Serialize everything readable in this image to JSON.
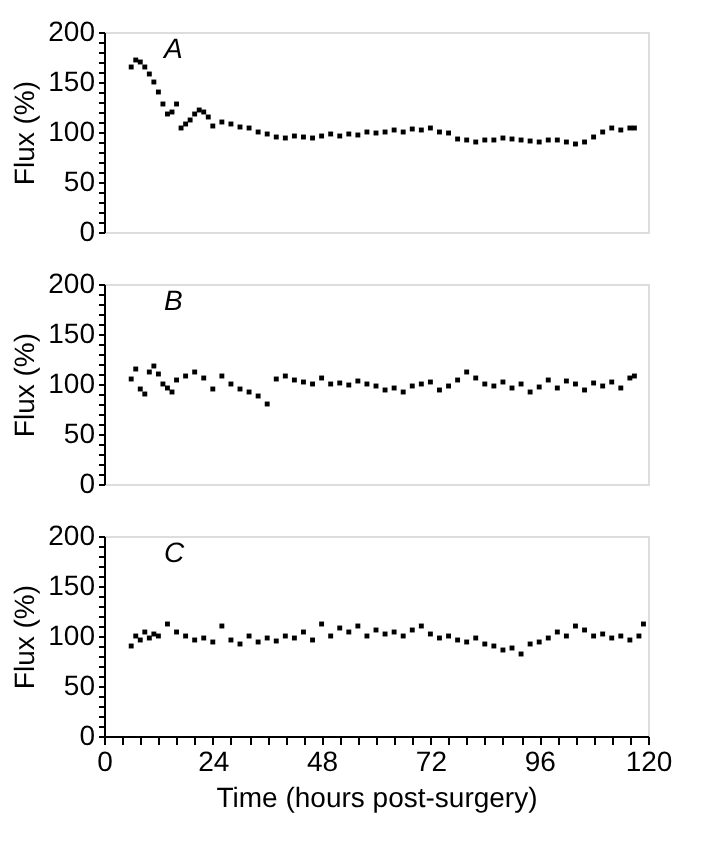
{
  "chart_data": [
    {
      "type": "scatter",
      "ylabel": "Flux (%)",
      "annotations": [
        "A"
      ],
      "marker": "square",
      "grid": false,
      "tick_labels": "y",
      "xlim": [
        0,
        120
      ],
      "ylim": [
        0,
        200
      ],
      "yticks": [
        0,
        {
          "value": 10,
          "label": null
        },
        {
          "value": 20,
          "label": null
        },
        {
          "value": 30,
          "label": null
        },
        {
          "value": 40,
          "label": null
        },
        50,
        {
          "value": 60,
          "label": null
        },
        {
          "value": 70,
          "label": null
        },
        {
          "value": 80,
          "label": null
        },
        {
          "value": 90,
          "label": null
        },
        100,
        {
          "value": 110,
          "label": null
        },
        {
          "value": 120,
          "label": null
        },
        {
          "value": 130,
          "label": null
        },
        {
          "value": 140,
          "label": null
        },
        150,
        {
          "value": 160,
          "label": null
        },
        {
          "value": 170,
          "label": null
        },
        {
          "value": 180,
          "label": null
        },
        {
          "value": 190,
          "label": null
        },
        200
      ],
      "x": [
        6,
        7,
        8,
        9,
        10,
        11,
        12,
        13,
        14,
        15,
        16,
        17,
        18,
        19,
        20,
        21,
        22,
        23,
        24,
        26,
        28,
        30,
        32,
        34,
        36,
        38,
        40,
        42,
        44,
        46,
        48,
        50,
        52,
        54,
        56,
        58,
        60,
        62,
        64,
        66,
        68,
        70,
        72,
        74,
        76,
        78,
        80,
        82,
        84,
        86,
        88,
        90,
        92,
        94,
        96,
        98,
        100,
        102,
        104,
        106,
        108,
        110,
        112,
        114,
        116,
        117
      ],
      "series": [
        {
          "color": "#000000",
          "values": [
            165,
            172,
            170,
            165,
            158,
            150,
            140,
            128,
            118,
            120,
            128,
            104,
            108,
            112,
            118,
            122,
            120,
            115,
            106,
            110,
            108,
            105,
            104,
            100,
            98,
            95,
            94,
            96,
            95,
            94,
            96,
            98,
            96,
            98,
            97,
            100,
            99,
            100,
            102,
            100,
            103,
            102,
            104,
            100,
            99,
            93,
            92,
            90,
            92,
            92,
            94,
            93,
            92,
            91,
            90,
            92,
            92,
            90,
            88,
            90,
            95,
            100,
            104,
            102,
            104,
            104
          ]
        }
      ]
    },
    {
      "type": "scatter",
      "ylabel": "Flux (%)",
      "annotations": [
        "B"
      ],
      "marker": "square",
      "grid": false,
      "tick_labels": "y",
      "xlim": [
        0,
        120
      ],
      "ylim": [
        0,
        200
      ],
      "yticks": [
        0,
        {
          "value": 10,
          "label": null
        },
        {
          "value": 20,
          "label": null
        },
        {
          "value": 30,
          "label": null
        },
        {
          "value": 40,
          "label": null
        },
        50,
        {
          "value": 60,
          "label": null
        },
        {
          "value": 70,
          "label": null
        },
        {
          "value": 80,
          "label": null
        },
        {
          "value": 90,
          "label": null
        },
        100,
        {
          "value": 110,
          "label": null
        },
        {
          "value": 120,
          "label": null
        },
        {
          "value": 130,
          "label": null
        },
        {
          "value": 140,
          "label": null
        },
        150,
        {
          "value": 160,
          "label": null
        },
        {
          "value": 170,
          "label": null
        },
        {
          "value": 180,
          "label": null
        },
        {
          "value": 190,
          "label": null
        },
        200
      ],
      "x": [
        6,
        7,
        8,
        9,
        10,
        11,
        12,
        13,
        14,
        15,
        16,
        18,
        20,
        22,
        24,
        26,
        28,
        30,
        32,
        34,
        36,
        38,
        40,
        42,
        44,
        46,
        48,
        50,
        52,
        54,
        56,
        58,
        60,
        62,
        64,
        66,
        68,
        70,
        72,
        74,
        76,
        78,
        80,
        82,
        84,
        86,
        88,
        90,
        92,
        94,
        96,
        98,
        100,
        102,
        104,
        106,
        108,
        110,
        112,
        114,
        116,
        117
      ],
      "series": [
        {
          "color": "#000000",
          "values": [
            105,
            115,
            95,
            90,
            112,
            118,
            110,
            100,
            96,
            92,
            104,
            108,
            112,
            106,
            95,
            108,
            100,
            95,
            92,
            88,
            80,
            105,
            108,
            104,
            102,
            100,
            106,
            100,
            101,
            99,
            103,
            100,
            98,
            94,
            96,
            92,
            98,
            100,
            102,
            94,
            98,
            104,
            112,
            106,
            100,
            98,
            102,
            96,
            100,
            92,
            97,
            104,
            96,
            103,
            100,
            94,
            101,
            98,
            102,
            96,
            106,
            108
          ]
        }
      ]
    },
    {
      "type": "scatter",
      "xlabel": "Time (hours post-surgery)",
      "ylabel": "Flux (%)",
      "annotations": [
        "C"
      ],
      "marker": "square",
      "grid": false,
      "xlim": [
        0,
        120
      ],
      "ylim": [
        0,
        200
      ],
      "xticks": [
        0,
        {
          "value": 4,
          "label": null
        },
        {
          "value": 8,
          "label": null
        },
        {
          "value": 12,
          "label": null
        },
        {
          "value": 16,
          "label": null
        },
        {
          "value": 20,
          "label": null
        },
        24,
        {
          "value": 28,
          "label": null
        },
        {
          "value": 32,
          "label": null
        },
        {
          "value": 36,
          "label": null
        },
        {
          "value": 40,
          "label": null
        },
        {
          "value": 44,
          "label": null
        },
        48,
        {
          "value": 52,
          "label": null
        },
        {
          "value": 56,
          "label": null
        },
        {
          "value": 60,
          "label": null
        },
        {
          "value": 64,
          "label": null
        },
        {
          "value": 68,
          "label": null
        },
        72,
        {
          "value": 76,
          "label": null
        },
        {
          "value": 80,
          "label": null
        },
        {
          "value": 84,
          "label": null
        },
        {
          "value": 88,
          "label": null
        },
        {
          "value": 92,
          "label": null
        },
        96,
        {
          "value": 100,
          "label": null
        },
        {
          "value": 104,
          "label": null
        },
        {
          "value": 108,
          "label": null
        },
        {
          "value": 112,
          "label": null
        },
        {
          "value": 116,
          "label": null
        },
        120
      ],
      "yticks": [
        0,
        {
          "value": 10,
          "label": null
        },
        {
          "value": 20,
          "label": null
        },
        {
          "value": 30,
          "label": null
        },
        {
          "value": 40,
          "label": null
        },
        50,
        {
          "value": 60,
          "label": null
        },
        {
          "value": 70,
          "label": null
        },
        {
          "value": 80,
          "label": null
        },
        {
          "value": 90,
          "label": null
        },
        100,
        {
          "value": 110,
          "label": null
        },
        {
          "value": 120,
          "label": null
        },
        {
          "value": 130,
          "label": null
        },
        {
          "value": 140,
          "label": null
        },
        150,
        {
          "value": 160,
          "label": null
        },
        {
          "value": 170,
          "label": null
        },
        {
          "value": 180,
          "label": null
        },
        {
          "value": 190,
          "label": null
        },
        200
      ],
      "x": [
        6,
        7,
        8,
        9,
        10,
        11,
        12,
        14,
        16,
        18,
        20,
        22,
        24,
        26,
        28,
        30,
        32,
        34,
        36,
        38,
        40,
        42,
        44,
        46,
        48,
        50,
        52,
        54,
        56,
        58,
        60,
        62,
        64,
        66,
        68,
        70,
        72,
        74,
        76,
        78,
        80,
        82,
        84,
        86,
        88,
        90,
        92,
        94,
        96,
        98,
        100,
        102,
        104,
        106,
        108,
        110,
        112,
        114,
        116,
        118,
        119
      ],
      "series": [
        {
          "color": "#000000",
          "values": [
            90,
            100,
            96,
            104,
            98,
            102,
            100,
            112,
            104,
            100,
            96,
            98,
            94,
            110,
            96,
            92,
            100,
            94,
            98,
            95,
            100,
            98,
            104,
            96,
            112,
            100,
            108,
            104,
            110,
            100,
            106,
            102,
            104,
            100,
            106,
            110,
            102,
            98,
            100,
            96,
            94,
            98,
            92,
            90,
            86,
            88,
            82,
            92,
            94,
            98,
            104,
            100,
            110,
            106,
            100,
            102,
            98,
            100,
            96,
            100,
            112
          ]
        }
      ]
    }
  ]
}
